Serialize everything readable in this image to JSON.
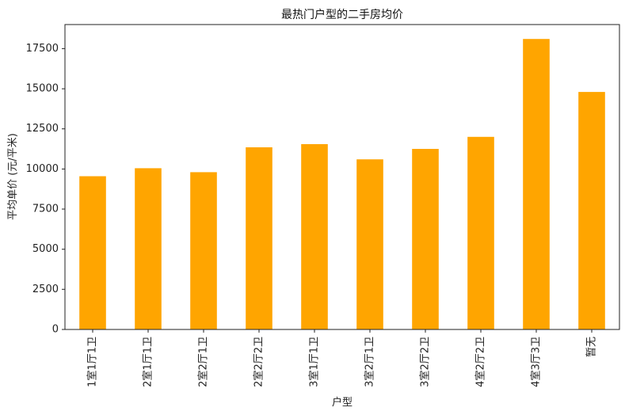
{
  "chart_data": {
    "type": "bar",
    "title": "最热门户型的二手房均价",
    "xlabel": "户型",
    "ylabel": "平均单价 (元/平米)",
    "categories": [
      "1室1厅1卫",
      "2室1厅1卫",
      "2室2厅1卫",
      "2室2厅2卫",
      "3室1厅1卫",
      "3室2厅1卫",
      "3室2厅2卫",
      "4室2厅2卫",
      "4室3厅3卫",
      "暂无"
    ],
    "values": [
      9550,
      10050,
      9800,
      11350,
      11550,
      10600,
      11250,
      12000,
      18100,
      14800
    ],
    "ylim": [
      0,
      19000
    ],
    "yticks": [
      0,
      2500,
      5000,
      7500,
      10000,
      12500,
      15000,
      17500
    ],
    "bar_color": "#FFA500",
    "grid": false,
    "legend": "none"
  }
}
